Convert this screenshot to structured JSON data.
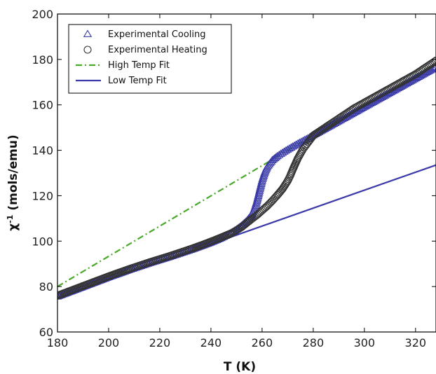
{
  "chart_data": {
    "type": "scatter",
    "xlabel": "T (K)",
    "ylabel": "χ",
    "ylabel_superscript": "-1",
    "ylabel_units": " (mols/emu)",
    "xlim": [
      180,
      328
    ],
    "ylim": [
      60,
      200
    ],
    "x_ticks": [
      180,
      200,
      220,
      240,
      260,
      280,
      300,
      320
    ],
    "y_ticks": [
      60,
      80,
      100,
      120,
      140,
      160,
      180,
      200
    ],
    "grid": false,
    "legend_position": "top-left",
    "series": [
      {
        "name": "Experimental Cooling",
        "kind": "scatter",
        "marker": "triangle",
        "color": "#3a3aa8",
        "x": [
          180,
          184,
          188,
          192,
          196,
          200,
          204,
          208,
          212,
          216,
          220,
          224,
          228,
          232,
          236,
          240,
          244,
          248,
          250,
          252,
          254,
          256,
          257,
          258,
          259,
          260,
          261,
          262,
          264,
          266,
          268,
          270,
          272,
          274,
          276,
          278,
          280,
          284,
          288,
          292,
          296,
          300,
          304,
          308,
          312,
          316,
          320,
          324,
          328
        ],
        "y": [
          75.5,
          77.2,
          78.9,
          80.6,
          82.3,
          84.0,
          85.6,
          87.2,
          88.7,
          90.2,
          91.6,
          93.0,
          94.5,
          96.0,
          97.6,
          99.3,
          101.2,
          103.5,
          105.0,
          106.7,
          108.8,
          111.5,
          114.0,
          117.5,
          122.0,
          126.5,
          130.0,
          132.5,
          135.5,
          137.3,
          138.8,
          140.2,
          141.5,
          142.8,
          144.0,
          145.2,
          146.5,
          149.0,
          151.5,
          154.0,
          156.5,
          159.0,
          161.5,
          164.0,
          166.5,
          169.0,
          171.5,
          174.0,
          176.5
        ]
      },
      {
        "name": "Experimental Heating",
        "kind": "scatter",
        "marker": "circle",
        "color": "#333333",
        "x": [
          180,
          184,
          188,
          192,
          196,
          200,
          204,
          208,
          212,
          216,
          220,
          224,
          228,
          232,
          236,
          240,
          244,
          248,
          250,
          252,
          254,
          256,
          258,
          260,
          262,
          264,
          266,
          268,
          270,
          271,
          272,
          273,
          274,
          275,
          276,
          277,
          278,
          280,
          284,
          288,
          292,
          296,
          300,
          304,
          308,
          312,
          316,
          320,
          324,
          328
        ],
        "y": [
          76.0,
          77.7,
          79.4,
          81.1,
          82.8,
          84.5,
          86.1,
          87.7,
          89.2,
          90.7,
          92.1,
          93.5,
          95.0,
          96.5,
          98.1,
          99.8,
          101.6,
          103.5,
          104.8,
          106.2,
          108.0,
          109.8,
          111.5,
          113.5,
          115.5,
          117.8,
          120.3,
          123.0,
          126.5,
          128.8,
          131.5,
          134.0,
          136.5,
          138.5,
          140.5,
          142.0,
          143.5,
          146.5,
          149.5,
          152.5,
          155.5,
          158.5,
          161.0,
          163.5,
          166.0,
          168.5,
          171.0,
          173.5,
          176.5,
          179.5
        ]
      },
      {
        "name": "High Temp Fit",
        "kind": "line",
        "style": "dashdot",
        "color": "#4aa82a",
        "x": [
          180,
          328
        ],
        "y": [
          80.0,
          178.5
        ]
      },
      {
        "name": "Low Temp Fit",
        "kind": "line",
        "style": "solid",
        "color": "#3a3aa8",
        "x": [
          180,
          328
        ],
        "y": [
          75.0,
          133.5
        ]
      }
    ]
  }
}
